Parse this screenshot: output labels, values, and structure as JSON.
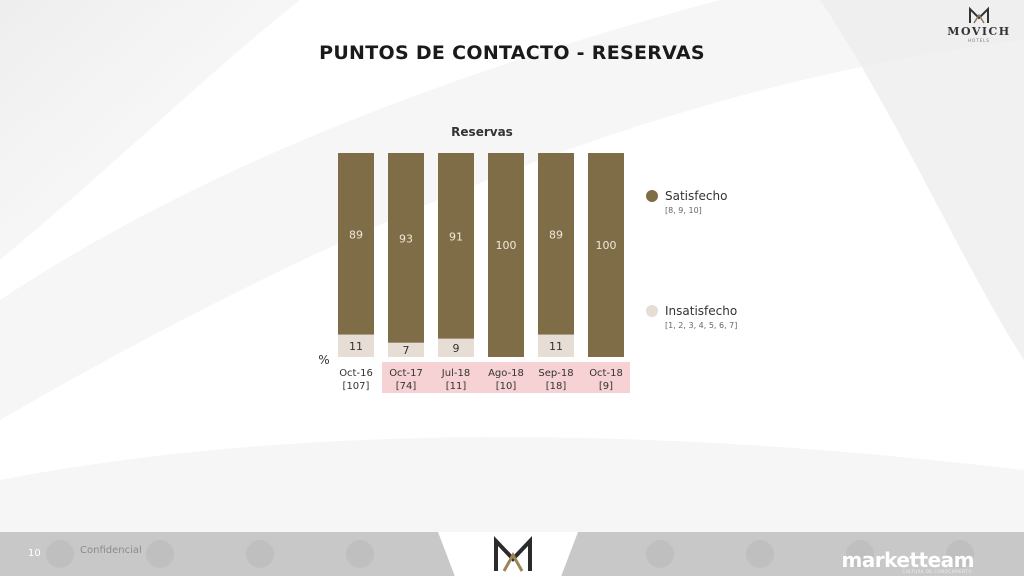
{
  "slide": {
    "title": "PUNTOS DE CONTACTO - RESERVAS",
    "brand_logo": {
      "word": "MOVICH",
      "sub": "HOTELS"
    },
    "footer": {
      "page_number": "10",
      "confidential": "Confidencial",
      "brand": "marketteam",
      "brand_sub": "CULTURA DE CONOCIMIENTO"
    }
  },
  "colors": {
    "satisfecho": "#7f6d48",
    "insatisfecho": "#e6ddd5",
    "highlight": "#f7d2d4"
  },
  "chart_data": {
    "type": "bar",
    "stacked": true,
    "title": "Reservas",
    "ylabel": "%",
    "ylim": [
      0,
      100
    ],
    "categories": [
      "Oct-16",
      "Oct-17",
      "Jul-18",
      "Ago-18",
      "Sep-18",
      "Oct-18"
    ],
    "sample_sizes": [
      "[107]",
      "[74]",
      "[11]",
      "[10]",
      "[18]",
      "[9]"
    ],
    "highlighted": [
      false,
      true,
      true,
      true,
      true,
      true
    ],
    "series": [
      {
        "name": "Insatisfecho",
        "legend_note": "[1, 2, 3, 4, 5, 6, 7]",
        "values": [
          11,
          7,
          9,
          0,
          11,
          0
        ],
        "labels": [
          "11",
          "7",
          "9",
          "",
          "11",
          ""
        ]
      },
      {
        "name": "Satisfecho",
        "legend_note": "[8, 9, 10]",
        "values": [
          89,
          93,
          91,
          100,
          89,
          100
        ],
        "labels": [
          "89",
          "93",
          "91",
          "100",
          "89",
          "100"
        ]
      }
    ],
    "legend_position": "right",
    "grid": false
  }
}
